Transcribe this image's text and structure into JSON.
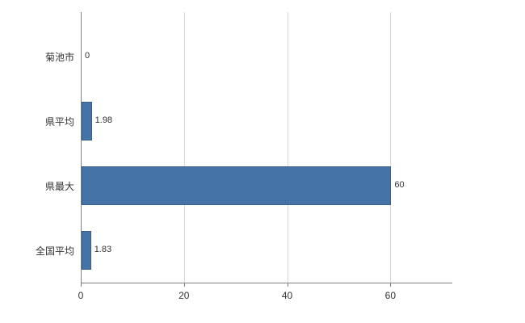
{
  "chart_data": {
    "type": "bar",
    "orientation": "horizontal",
    "title": "",
    "xlabel": "",
    "ylabel": "",
    "categories": [
      "菊池市",
      "県平均",
      "県最大",
      "全国平均"
    ],
    "values": [
      0,
      1.98,
      60,
      1.83
    ],
    "value_labels": [
      "0",
      "1.98",
      "60",
      "1.83"
    ],
    "x_ticks": [
      0,
      20,
      40,
      60
    ],
    "x_tick_labels": [
      "0",
      "20",
      "40",
      "60"
    ],
    "xlim": [
      0,
      72
    ],
    "grid": "vertical",
    "legend_position": "none",
    "bar_color": "#4572a7",
    "bar_border_color": "#3a618c",
    "grid_color": "#d8d8d8",
    "axis_color": "#808080",
    "text_color": "#333333"
  }
}
